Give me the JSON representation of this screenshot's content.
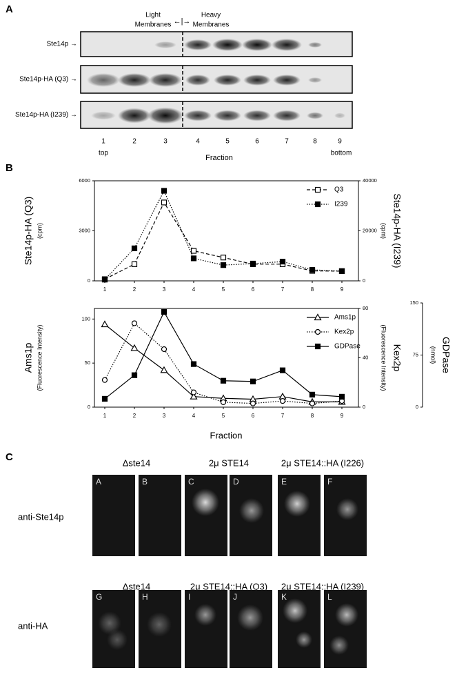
{
  "panel_a": {
    "label": "A",
    "light_membranes": [
      "Light",
      "Membranes"
    ],
    "divider": "←|→",
    "heavy_membranes": [
      "Heavy",
      "Membranes"
    ],
    "rows": [
      "Ste14p →",
      "Ste14p-HA (Q3) →",
      "Ste14p-HA (I239) →"
    ],
    "fractions": [
      "1",
      "2",
      "3",
      "4",
      "5",
      "6",
      "7",
      "8",
      "9"
    ],
    "top": "top",
    "bottom": "bottom",
    "xlabel": "Fraction"
  },
  "panel_b": {
    "label": "B"
  },
  "chart_data": [
    {
      "type": "line",
      "categories": [
        "1",
        "2",
        "3",
        "4",
        "5",
        "6",
        "7",
        "8",
        "9"
      ],
      "ylabel": "Ste14p-HA (Q3)",
      "ylabel_unit": "(cpm)",
      "ylim": [
        0,
        6000
      ],
      "yticks": [
        0,
        3000,
        6000
      ],
      "y2label": "Ste14p-HA (I239)",
      "y2label_unit": "(cpm)",
      "y2lim": [
        0,
        40000
      ],
      "y2ticks": [
        0,
        20000,
        40000
      ],
      "legend": "upper right",
      "series": [
        {
          "name": "Q3",
          "color": "#000000",
          "marker": "square",
          "filled": false,
          "dash": "dashed",
          "values": [
            100,
            1000,
            4700,
            1800,
            1400,
            1000,
            1000,
            600,
            580
          ]
        },
        {
          "name": "I239",
          "axis": "y2",
          "color": "#000000",
          "marker": "square",
          "filled": true,
          "dash": "dotted",
          "values": [
            500,
            13000,
            36000,
            9000,
            6300,
            6900,
            7700,
            4400,
            3900
          ]
        }
      ]
    },
    {
      "type": "line",
      "categories": [
        "1",
        "2",
        "3",
        "4",
        "5",
        "6",
        "7",
        "8",
        "9"
      ],
      "xlabel": "Fraction",
      "ylabel": "Ams1p",
      "ylabel_unit": "(Fluorescence Intensity)",
      "ylim": [
        0,
        112
      ],
      "yticks": [
        0,
        50,
        100
      ],
      "y2label": "Kex2p",
      "y2label_unit": "(Fluorescence Intensity)",
      "y2lim": [
        0,
        80
      ],
      "y2ticks": [
        0,
        40,
        80
      ],
      "y3label": "GDPase",
      "y3label_unit": "(nmol)",
      "y3lim": [
        0,
        150
      ],
      "y3ticks": [
        0,
        75,
        150
      ],
      "legend": "upper right",
      "series": [
        {
          "name": "Ams1p",
          "color": "#000000",
          "marker": "triangle",
          "filled": false,
          "dash": "solid",
          "values": [
            94,
            67,
            42,
            12,
            10,
            9,
            12,
            6,
            6
          ]
        },
        {
          "name": "Kex2p",
          "axis": "y2",
          "color": "#000000",
          "marker": "circle",
          "filled": false,
          "dash": "dotted",
          "values": [
            22,
            68,
            47,
            12,
            4,
            3,
            5,
            3,
            5
          ]
        },
        {
          "name": "GDPase",
          "axis": "y3",
          "color": "#000000",
          "marker": "square",
          "filled": true,
          "dash": "solid",
          "values": [
            12,
            46,
            137,
            62,
            38,
            37,
            53,
            18,
            15
          ]
        }
      ]
    }
  ],
  "panel_c": {
    "label": "C",
    "rows": [
      {
        "row_label": "anti-Ste14p",
        "groups": [
          "Δste14",
          "2μ STE14",
          "2μ STE14::HA (I226)"
        ],
        "panels": [
          "A",
          "B",
          "C",
          "D",
          "E",
          "F"
        ]
      },
      {
        "row_label": "anti-HA",
        "groups": [
          "Δste14",
          "2μ STE14::HA (Q3)",
          "2μ STE14::HA (I239)"
        ],
        "panels": [
          "G",
          "H",
          "I",
          "J",
          "K",
          "L"
        ]
      }
    ]
  }
}
